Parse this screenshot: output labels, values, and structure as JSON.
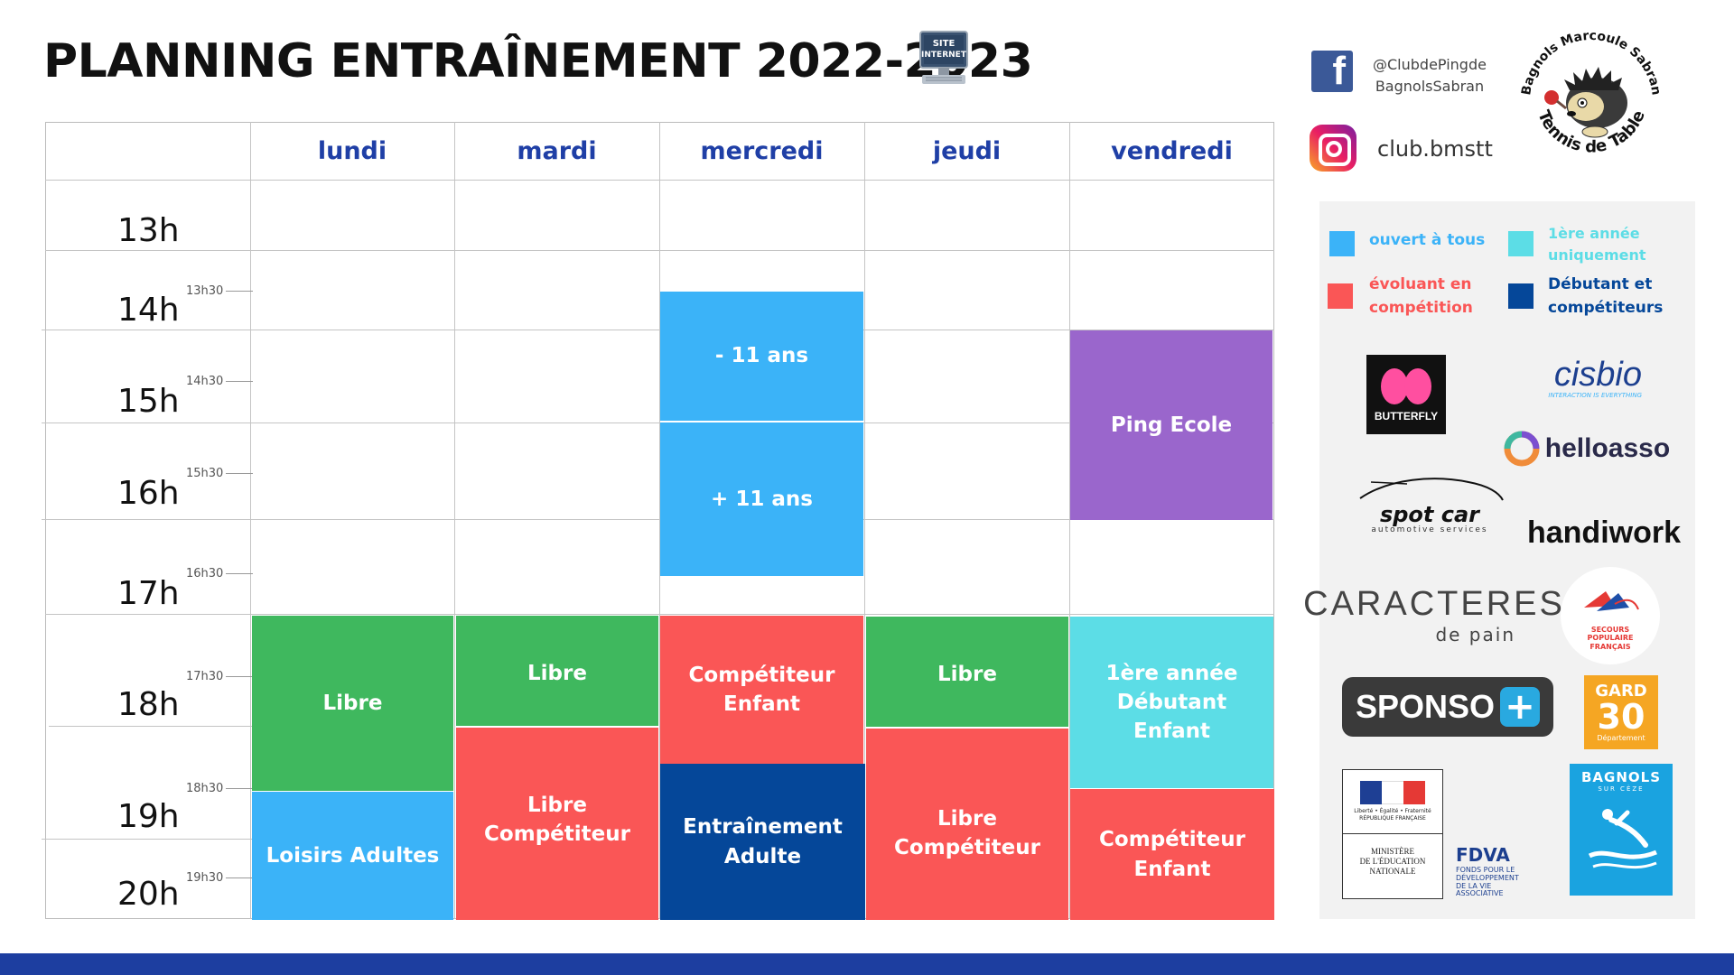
{
  "title": "PLANNING ENTRAÎNEMENT 2022-2023",
  "site_icon": {
    "icon": "computer-icon",
    "label_line1": "SITE",
    "label_line2": "INTERNET"
  },
  "days": [
    "lundi",
    "mardi",
    "mercredi",
    "jeudi",
    "vendredi"
  ],
  "hours": [
    "13h",
    "14h",
    "15h",
    "16h",
    "17h",
    "18h",
    "19h",
    "20h"
  ],
  "half_hours": [
    "13h30",
    "14h30",
    "15h30",
    "16h30",
    "17h30",
    "18h30",
    "19h30"
  ],
  "colors": {
    "ouvert": "#3bb3f8",
    "competition": "#fa5656",
    "premiere_annee": "#5cdde6",
    "debutant_competiteur": "#054799",
    "libre": "#3fb85e",
    "ping_ecole": "#9a66cc",
    "day_headers": "#1f3fa6",
    "bottom_bar": "#1d3ea0"
  },
  "sessions": {
    "lundi": [
      "Libre",
      "Loisirs Adultes"
    ],
    "mardi": [
      "Libre",
      "Libre\nCompétiteur"
    ],
    "mercredi": [
      "- 11 ans",
      "+ 11 ans",
      "Compétiteur\nEnfant",
      "Entraînement\nAdulte"
    ],
    "jeudi": [
      "Libre",
      "Libre\nCompétiteur"
    ],
    "vendredi": [
      "Ping Ecole",
      "1ère année\nDébutant\nEnfant",
      "Compétiteur\nEnfant"
    ]
  },
  "social": {
    "facebook_icon": "facebook-icon",
    "facebook": "@ClubdePingde\nBagnolsSabran",
    "instagram_icon": "instagram-icon",
    "instagram": "club.bmstt"
  },
  "club_logo": {
    "top_text": "Bagnols Marcoule Sabran",
    "bottom_text": "Tennis de Table"
  },
  "legend": [
    {
      "label": "ouvert à tous",
      "color": "#3bb3f8"
    },
    {
      "label": "1ère année\nuniquement",
      "color": "#5cdde6"
    },
    {
      "label": "évoluant en\ncompétition",
      "color": "#fa5656"
    },
    {
      "label": "Débutant et\ncompétiteurs",
      "color": "#054799"
    }
  ],
  "sponsors": {
    "butterfly": "BUTTERFLY",
    "cisbio": "cisbio",
    "cisbio_tagline": "INTERACTION IS EVERYTHING",
    "helloasso": "helloasso",
    "spotcar": "spot car",
    "spotcar_tagline": "automotive services",
    "handiwork": "handiwork",
    "caracteres": "CARACTERES",
    "caracteres_sub": "de pain",
    "secours": "SECOURS POPULAIRE FRANÇAIS",
    "sponso": "SPONSO",
    "gard": "GARD",
    "gard_num": "30",
    "gard_sub": "Département",
    "republique": "Liberté • Égalité • Fraternité\nRÉPUBLIQUE FRANÇAISE",
    "ministere": "MINISTÈRE\nDE L'ÉDUCATION\nNATIONALE",
    "fdva": "FDVA",
    "fdva_sub": "FONDS POUR LE\nDÉVELOPPEMENT\nDE LA VIE\nASSOCIATIVE",
    "bagnols": "BAGNOLS",
    "bagnols_sub": "SUR CÈZE"
  }
}
